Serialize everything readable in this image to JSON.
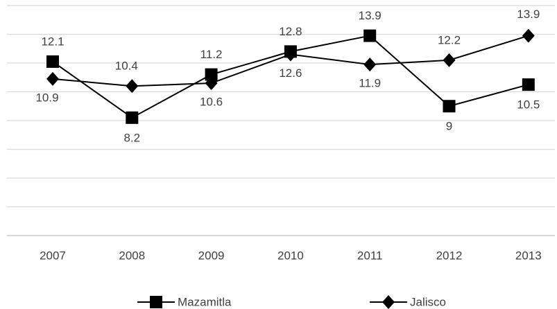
{
  "chart_data": {
    "type": "line",
    "categories": [
      "2007",
      "2008",
      "2009",
      "2010",
      "2011",
      "2012",
      "2013"
    ],
    "series": [
      {
        "name": "Mazamitla",
        "color": "#000000",
        "marker": "square",
        "values": [
          12.1,
          8.2,
          11.2,
          12.8,
          13.9,
          9,
          10.5
        ]
      },
      {
        "name": "Jalisco",
        "color": "#000000",
        "marker": "diamond",
        "values": [
          10.9,
          10.4,
          10.6,
          12.6,
          11.9,
          12.2,
          13.9
        ]
      }
    ],
    "ylim": [
      0,
      16
    ],
    "yticks": [
      0,
      2,
      4,
      6,
      8,
      10,
      12,
      14,
      16
    ],
    "grid": true,
    "legend": "bottom"
  }
}
